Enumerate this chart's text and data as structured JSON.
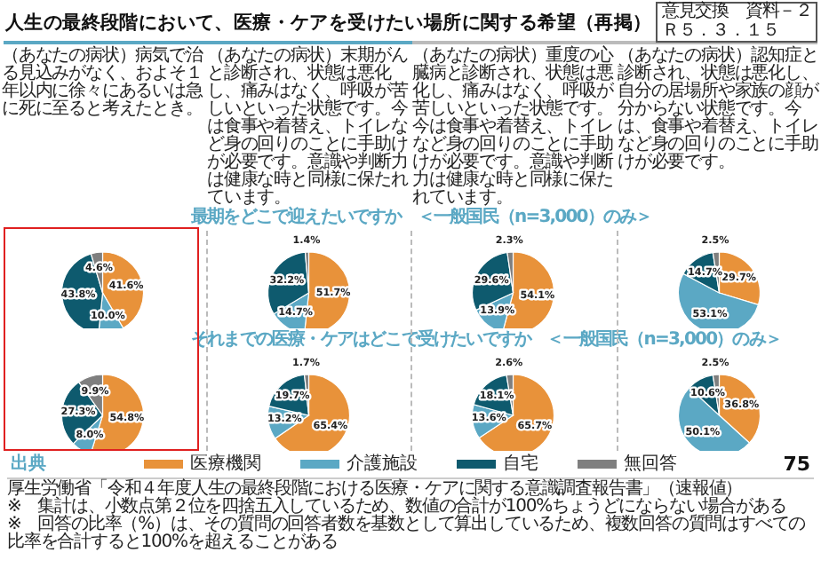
{
  "chart_data": [
    {
      "type": "pie",
      "title": "人生の最終段階において、医療・ケアを受けたい場所に関する希望（再掲）",
      "subtitle": "（あなたの病状）病気で治る見込みがなく、およそ１年以内に徐々にあるいは急に死に至ると考えたとき。",
      "categories": [
        "医療機関",
        "介護施設",
        "自宅",
        "無回答"
      ],
      "values": [
        41.6,
        10.0,
        43.8,
        4.6
      ],
      "value_labels": [
        "41.6%",
        "10.0%",
        "43.8%",
        "4.6%"
      ],
      "colors": [
        "#e8923a",
        "#5ba8c4",
        "#0e5a6e",
        "#7f7f7f"
      ],
      "legend": "bottom",
      "annotations": [
        "意見交換　資料－２",
        "Ｒ５．３．１５",
        "出典",
        "厚生労働省「令和４年度人生の最終段階における医療・ケアに関する意識調査報告書」（速報値）",
        "※　集計は、小数点第２位を四捨五入しているため、数値の合計が100%ちょうどにならない場合がある",
        "※　回答の比率（%）は、その質問の回答者数を基数として算出しているため、複数回答の質問はすべての比率を合計すると100%を超えることがある",
        "75"
      ]
    },
    {
      "type": "pie",
      "title": "最期をどこで迎えたいですか　＜一般国民（n=3,000）のみ＞",
      "subtitle": "（あなたの病状）末期がんと診断され、状態は悪化し、痛みはなく、呼吸が苦しいといった状態です。今は食事や着替え、トイレなど身の回りのことに手助けが必要です。意識や判断力は健康な時と同様に保たれています。",
      "values": [
        51.7,
        14.7,
        32.2,
        1.4
      ],
      "value_labels": [
        "51.7%",
        "14.7%",
        "32.2%",
        "1.4%"
      ],
      "colors": [
        "#e8923a",
        "#5ba8c4",
        "#0e5a6e",
        "#7f7f7f"
      ]
    },
    {
      "type": "pie",
      "subtitle": "（あなたの病状）重度の心臓病と診断され、状態は悪化し、痛みはなく、呼吸が苦しいといった状態です。今は食事や着替え、トイレなど身の回りのことに手助けが必要です。意識や判断力は健康な時と同様に保たれています。",
      "values": [
        54.1,
        13.9,
        29.6,
        2.3
      ],
      "value_labels": [
        "54.1%",
        "13.9%",
        "29.6%",
        "2.3%"
      ],
      "colors": [
        "#e8923a",
        "#5ba8c4",
        "#0e5a6e",
        "#7f7f7f"
      ]
    },
    {
      "type": "pie",
      "subtitle": "（あなたの病状）認知症と診断され、状態は悪化し、自分の居場所や家族の顔が分からない状態です。今は、食事や着替え、トイレなど身の回りのことに手助けが必要です。",
      "values": [
        29.7,
        53.1,
        14.7,
        2.5
      ],
      "value_labels": [
        "29.7%",
        "53.1%",
        "14.7%",
        "2.5%"
      ],
      "colors": [
        "#e8923a",
        "#5ba8c4",
        "#0e5a6e",
        "#7f7f7f"
      ]
    },
    {
      "type": "pie",
      "values": [
        54.8,
        8.0,
        27.3,
        9.9
      ],
      "value_labels": [
        "54.8%",
        "8.0%",
        "27.3%",
        "9.9%"
      ],
      "colors": [
        "#e8923a",
        "#5ba8c4",
        "#0e5a6e",
        "#7f7f7f"
      ]
    },
    {
      "type": "pie",
      "title": "それまでの医療・ケアはどこで受けたいですか　＜一般国民（n=3,000）のみ＞",
      "values": [
        65.4,
        13.2,
        19.7,
        1.7
      ],
      "value_labels": [
        "65.4%",
        "13.2%",
        "19.7%",
        "1.7%"
      ],
      "colors": [
        "#e8923a",
        "#5ba8c4",
        "#0e5a6e",
        "#7f7f7f"
      ]
    },
    {
      "type": "pie",
      "values": [
        65.7,
        13.6,
        18.1,
        2.6
      ],
      "value_labels": [
        "65.7%",
        "13.6%",
        "18.1%",
        "2.6%"
      ],
      "colors": [
        "#e8923a",
        "#5ba8c4",
        "#0e5a6e",
        "#7f7f7f"
      ]
    },
    {
      "type": "pie",
      "values": [
        36.8,
        50.1,
        10.6,
        2.5
      ],
      "value_labels": [
        "36.8%",
        "50.1%",
        "10.6%",
        "2.5%"
      ],
      "colors": [
        "#e8923a",
        "#5ba8c4",
        "#0e5a6e",
        "#7f7f7f"
      ]
    }
  ]
}
